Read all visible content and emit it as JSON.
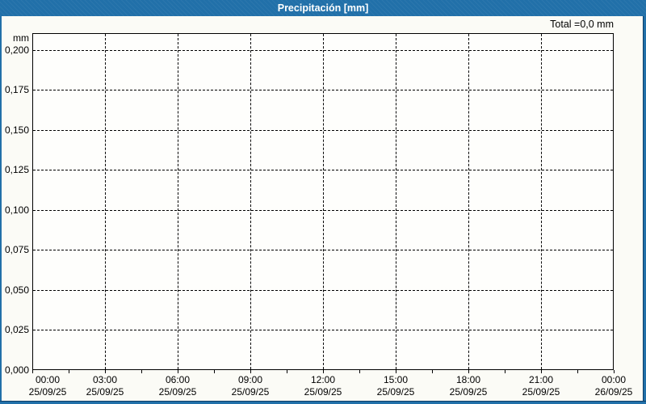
{
  "window": {
    "title": "Precipitación [mm]"
  },
  "annotations": {
    "total": "Total =0,0 mm"
  },
  "axes": {
    "y_unit": "mm",
    "y_ticks": [
      {
        "label": "0,200",
        "value": 0.2
      },
      {
        "label": "0,175",
        "value": 0.175
      },
      {
        "label": "0,150",
        "value": 0.15
      },
      {
        "label": "0,125",
        "value": 0.125
      },
      {
        "label": "0,100",
        "value": 0.1
      },
      {
        "label": "0,075",
        "value": 0.075
      },
      {
        "label": "0,050",
        "value": 0.05
      },
      {
        "label": "0,025",
        "value": 0.025
      },
      {
        "label": "0,000",
        "value": 0.0
      }
    ],
    "x_ticks": [
      {
        "time": "00:00",
        "date": "25/09/25"
      },
      {
        "time": "03:00",
        "date": "25/09/25"
      },
      {
        "time": "06:00",
        "date": "25/09/25"
      },
      {
        "time": "09:00",
        "date": "25/09/25"
      },
      {
        "time": "12:00",
        "date": "25/09/25"
      },
      {
        "time": "15:00",
        "date": "25/09/25"
      },
      {
        "time": "18:00",
        "date": "25/09/25"
      },
      {
        "time": "21:00",
        "date": "25/09/25"
      },
      {
        "time": "00:00",
        "date": "26/09/25"
      }
    ]
  },
  "colors": {
    "titlebar_blue": "#2170a9",
    "window_border_dark": "#0e3e68",
    "window_bg": "#fbfbf6",
    "plot_bg": "#fefefc",
    "grid": "#000000",
    "text": "#000000",
    "title_text": "#ffffff"
  },
  "chart_data": {
    "type": "bar",
    "title": "Precipitación [mm]",
    "ylabel": "mm",
    "xlabel": "",
    "x": [],
    "values": [],
    "total_mm": 0.0,
    "total_annotation": "Total =0,0 mm",
    "ylim": [
      0.0,
      0.2106
    ],
    "y_major_step": 0.025,
    "x_range": [
      "25/09/25 00:00",
      "26/09/25 00:00"
    ],
    "x_major_step_hours": 3,
    "x_minor_step_hours": 1.5,
    "grid": "dashed-major-both-axes",
    "legend": "none"
  }
}
